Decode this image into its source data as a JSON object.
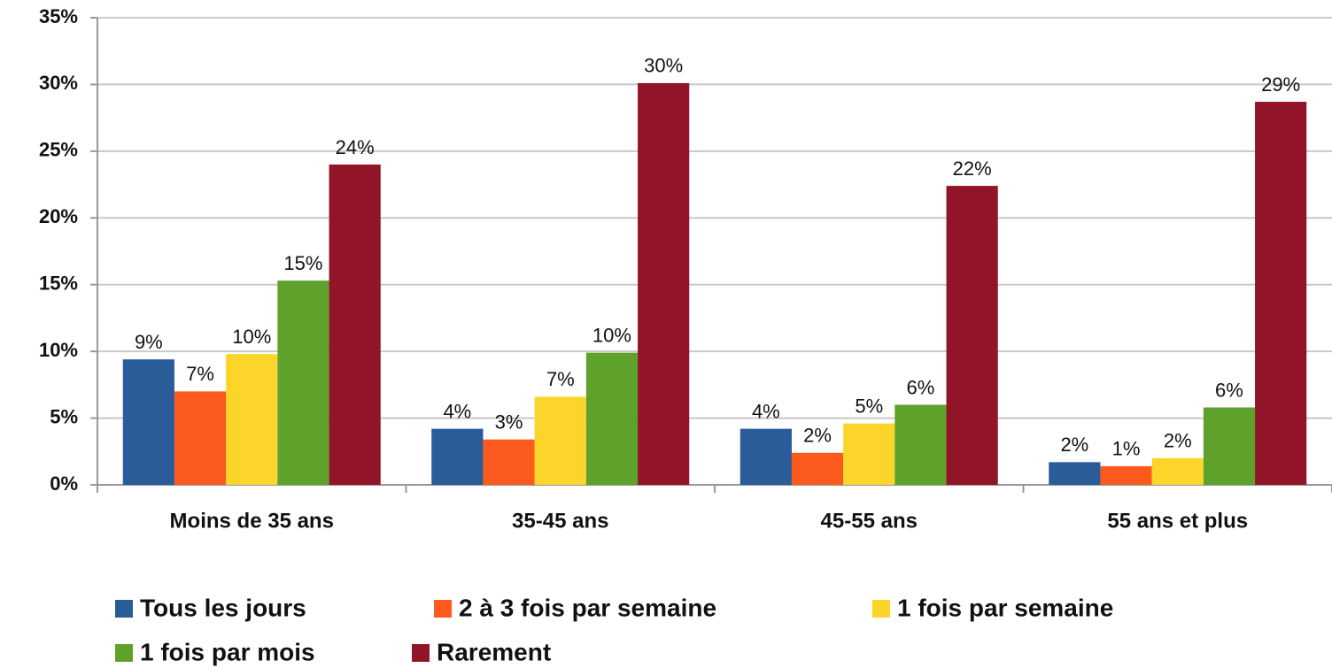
{
  "chart_data": {
    "type": "bar",
    "categories": [
      "Moins de 35 ans",
      "35-45 ans",
      "45-55 ans",
      "55 ans et plus"
    ],
    "series": [
      {
        "name": "Tous les jours",
        "color": "#2a5c9a",
        "values": [
          9.4,
          4.2,
          4.2,
          1.7
        ],
        "value_labels": [
          "9%",
          "4%",
          "4%",
          "2%"
        ]
      },
      {
        "name": "2 à 3 fois par semaine",
        "color": "#fb5a1c",
        "values": [
          7.0,
          3.4,
          2.4,
          1.4
        ],
        "value_labels": [
          "7%",
          "3%",
          "2%",
          "1%"
        ]
      },
      {
        "name": "1 fois par semaine",
        "color": "#fcd52b",
        "values": [
          9.8,
          6.6,
          4.6,
          2.0
        ],
        "value_labels": [
          "10%",
          "7%",
          "5%",
          "2%"
        ]
      },
      {
        "name": "1 fois par mois",
        "color": "#5ea22c",
        "values": [
          15.3,
          9.9,
          6.0,
          5.8
        ],
        "value_labels": [
          "15%",
          "10%",
          "6%",
          "6%"
        ]
      },
      {
        "name": "Rarement",
        "color": "#921428",
        "values": [
          24.0,
          30.1,
          22.4,
          28.7
        ],
        "value_labels": [
          "24%",
          "30%",
          "22%",
          "29%"
        ]
      }
    ],
    "ylim": [
      0,
      35
    ],
    "yticks": [
      {
        "value": 0,
        "label": "0%"
      },
      {
        "value": 5,
        "label": "5%"
      },
      {
        "value": 10,
        "label": "10%"
      },
      {
        "value": 15,
        "label": "15%"
      },
      {
        "value": 20,
        "label": "20%"
      },
      {
        "value": 25,
        "label": "25%"
      },
      {
        "value": 30,
        "label": "30%"
      },
      {
        "value": 35,
        "label": "35%"
      }
    ],
    "grid": true
  }
}
